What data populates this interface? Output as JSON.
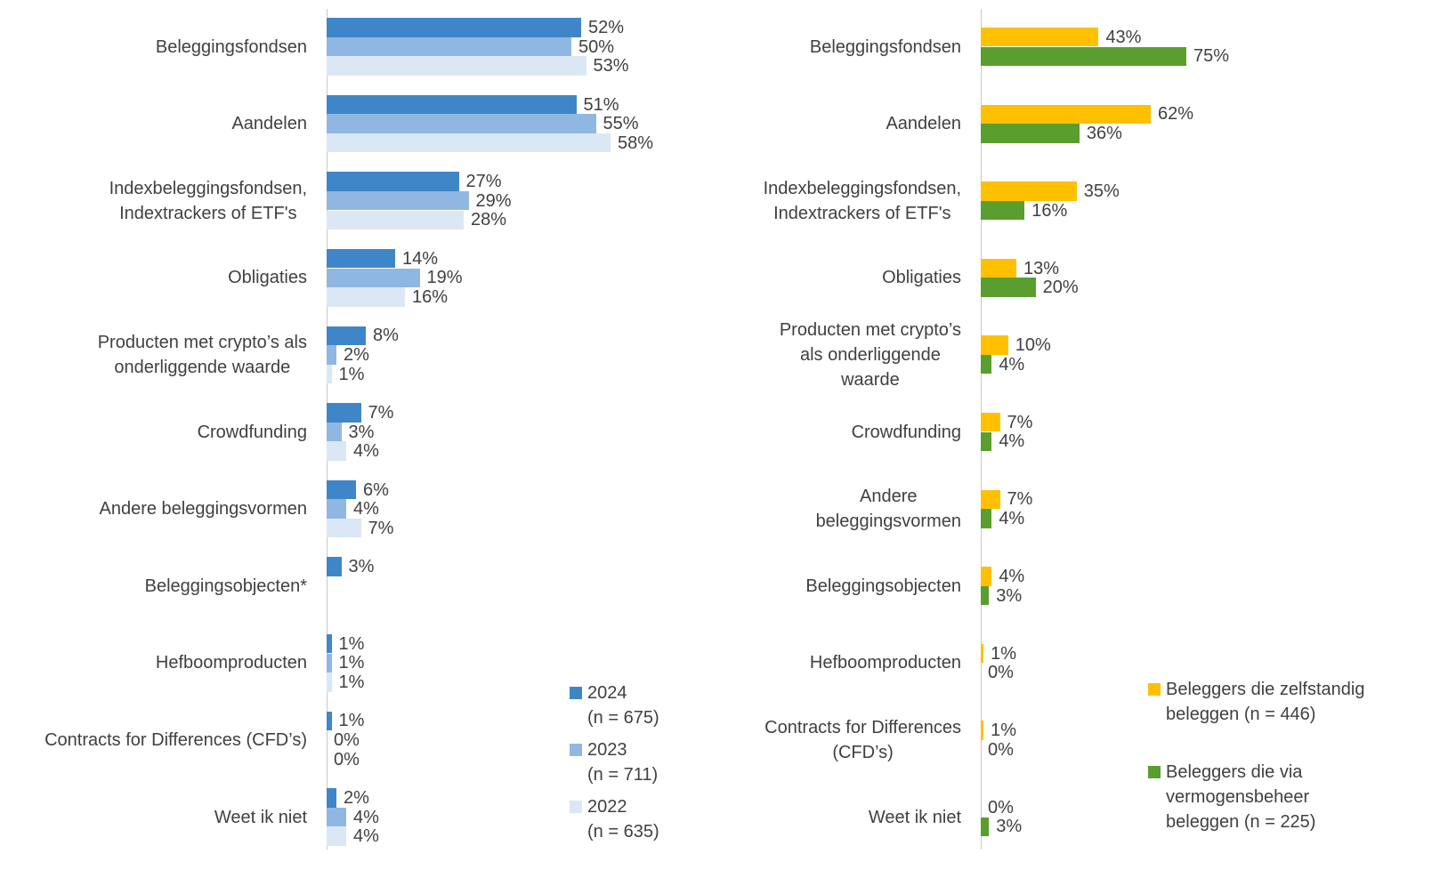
{
  "chart_data": [
    {
      "type": "hbar",
      "xlim": [
        0,
        100
      ],
      "categories": [
        "Beleggingsfondsen",
        "Aandelen",
        "Indexbeleggingsfondsen,\nIndextrackers of ETF's",
        "Obligaties",
        "Producten met crypto’s als\nonderliggende waarde",
        "Crowdfunding",
        "Andere beleggingsvormen",
        "Beleggingsobjecten*",
        "Hefboomproducten",
        "Contracts for Differences (CFD’s)",
        "Weet ik niet"
      ],
      "series": [
        {
          "name": "2024\n(n = 675)",
          "color": "#3f86c8",
          "values": [
            52,
            51,
            27,
            14,
            8,
            7,
            6,
            3,
            1,
            1,
            2
          ],
          "value_labels": [
            "52%",
            "51%",
            "27%",
            "14%",
            "8%",
            "7%",
            "6%",
            "3%",
            "1%",
            "1%",
            "2%"
          ]
        },
        {
          "name": "2023\n(n = 711)",
          "color": "#8fb7e1",
          "values": [
            50,
            55,
            29,
            19,
            2,
            3,
            4,
            null,
            1,
            0,
            4
          ],
          "value_labels": [
            "50%",
            "55%",
            "29%",
            "19%",
            "2%",
            "3%",
            "4%",
            null,
            "1%",
            "0%",
            "4%"
          ]
        },
        {
          "name": "2022\n(n = 635)",
          "color": "#dbe7f4",
          "values": [
            53,
            58,
            28,
            16,
            1,
            4,
            7,
            null,
            1,
            0,
            4
          ],
          "value_labels": [
            "53%",
            "58%",
            "28%",
            "16%",
            "1%",
            "4%",
            "7%",
            null,
            "1%",
            "0%",
            "4%"
          ]
        }
      ]
    },
    {
      "type": "hbar",
      "xlim": [
        0,
        100
      ],
      "categories": [
        "Beleggingsfondsen",
        "Aandelen",
        "Indexbeleggingsfondsen,\nIndextrackers of ETF's",
        "Obligaties",
        "Producten met crypto’s\nals onderliggende\nwaarde",
        "Crowdfunding",
        "Andere\nbeleggingsvormen",
        "Beleggingsobjecten",
        "Hefboomproducten",
        "Contracts for Differences\n(CFD’s)",
        "Weet ik niet"
      ],
      "series": [
        {
          "name": "Beleggers die zelfstandig\nbeleggen (n = 446)",
          "color": "#ffc000",
          "values": [
            43,
            62,
            35,
            13,
            10,
            7,
            7,
            4,
            1,
            1,
            0
          ],
          "value_labels": [
            "43%",
            "62%",
            "35%",
            "13%",
            "10%",
            "7%",
            "7%",
            "4%",
            "1%",
            "1%",
            "0%"
          ]
        },
        {
          "name": "Beleggers die via\nvermogensbeheer\nbeleggen (n = 225)",
          "color": "#5a9e2f",
          "values": [
            75,
            36,
            16,
            20,
            4,
            4,
            4,
            3,
            0,
            0,
            3
          ],
          "value_labels": [
            "75%",
            "36%",
            "16%",
            "20%",
            "4%",
            "4%",
            "4%",
            "3%",
            "0%",
            "0%",
            "3%"
          ]
        }
      ]
    }
  ]
}
